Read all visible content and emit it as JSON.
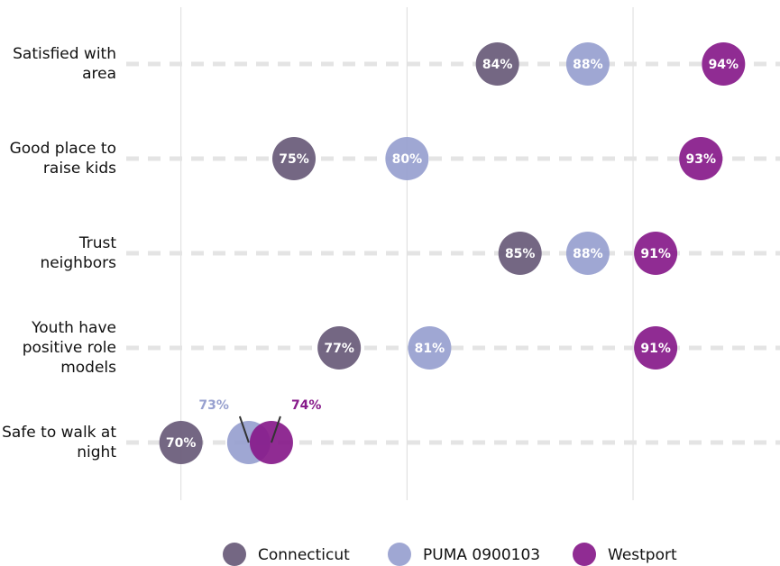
{
  "chart_data": {
    "type": "dot",
    "categories": [
      "Satisfied with area",
      "Good place to raise kids",
      "Trust neighbors",
      "Youth have positive role models",
      "Safe to walk at night"
    ],
    "series": [
      {
        "name": "Connecticut",
        "color": "#685a78",
        "values": [
          84,
          75,
          85,
          77,
          70
        ],
        "value_labels": [
          "84%",
          "75%",
          "85%",
          "77%",
          "70%"
        ]
      },
      {
        "name": "PUMA 0900103",
        "color": "#97a0cf",
        "values": [
          88,
          80,
          88,
          81,
          73
        ],
        "value_labels": [
          "88%",
          "80%",
          "88%",
          "81%",
          "73%"
        ]
      },
      {
        "name": "Westport",
        "color": "#871a8a",
        "values": [
          94,
          93,
          91,
          91,
          74
        ],
        "value_labels": [
          "94%",
          "93%",
          "91%",
          "91%",
          "74%"
        ]
      }
    ],
    "xlim": [
      67.5,
      96.5
    ],
    "xticks": [
      70,
      80,
      90
    ],
    "grid": true,
    "legend": "bottom"
  }
}
